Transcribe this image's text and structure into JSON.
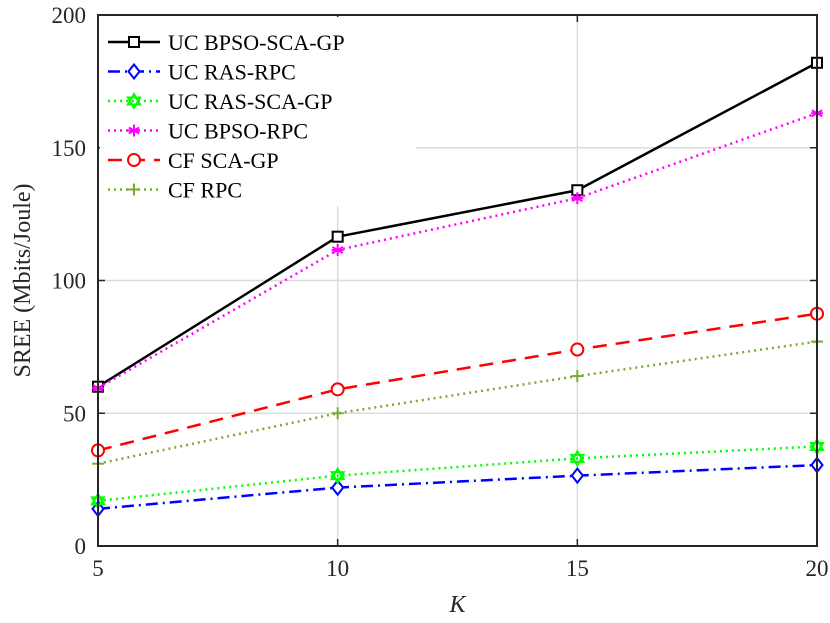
{
  "chart_data": {
    "type": "line",
    "title": "",
    "xlabel": "K",
    "ylabel": "SREE (Mbits/Joule)",
    "x": [
      5,
      10,
      15,
      20
    ],
    "xlim": [
      5,
      20
    ],
    "ylim": [
      0,
      200
    ],
    "xticks": [
      "5",
      "10",
      "15",
      "20"
    ],
    "yticks": [
      "0",
      "50",
      "100",
      "150",
      "200"
    ],
    "grid": true,
    "legend_position": "top-left",
    "series": [
      {
        "name": "UC BPSO-SCA-GP",
        "values": [
          60,
          116.5,
          134,
          182
        ],
        "color": "#000000",
        "dash": "solid",
        "marker": "square"
      },
      {
        "name": "UC RAS-RPC",
        "values": [
          14,
          22,
          26.5,
          30.5
        ],
        "color": "#0000ff",
        "dash": "dashdot",
        "marker": "diamond"
      },
      {
        "name": "UC RAS-SCA-GP",
        "values": [
          17,
          26.5,
          33,
          37.5
        ],
        "color": "#00ff00",
        "dash": "dotted",
        "marker": "hexagram"
      },
      {
        "name": "UC BPSO-RPC",
        "values": [
          59.5,
          111.5,
          131,
          163
        ],
        "color": "#ff00ff",
        "dash": "dotted",
        "marker": "asterisk"
      },
      {
        "name": "CF SCA-GP",
        "values": [
          36,
          59,
          74,
          87.5
        ],
        "color": "#ff0000",
        "dash": "dashed",
        "marker": "circle"
      },
      {
        "name": "CF RPC",
        "values": [
          31,
          50,
          64,
          77
        ],
        "color": "#77ac30",
        "dash": "dotted",
        "marker": "plus"
      }
    ]
  }
}
